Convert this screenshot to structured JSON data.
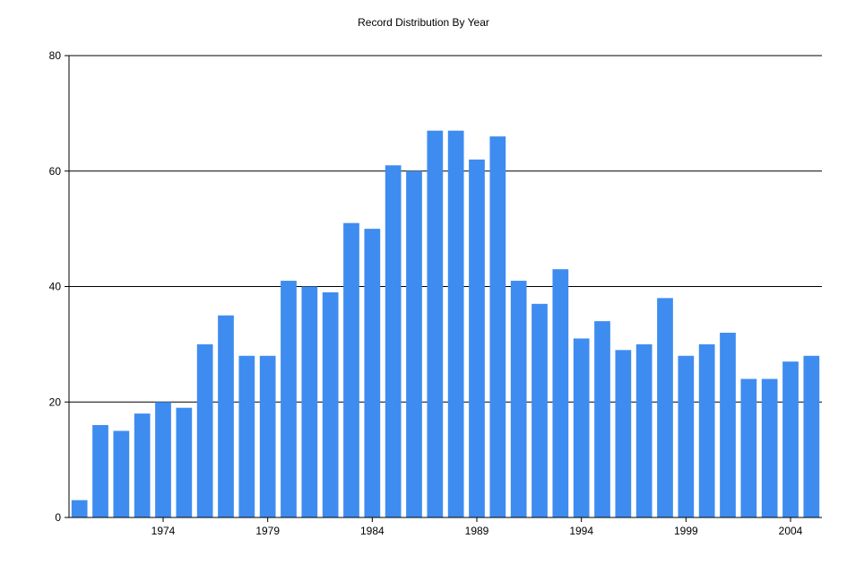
{
  "chart_data": {
    "type": "bar",
    "title": "Record Distribution By Year",
    "xlabel": "",
    "ylabel": "",
    "x_range": [
      1969.5,
      2005.5
    ],
    "ylim": [
      0,
      80
    ],
    "y_ticks": [
      0,
      20,
      40,
      60,
      80
    ],
    "x_ticks": [
      1974,
      1979,
      1984,
      1989,
      1994,
      1999,
      2004
    ],
    "grid": "horizontal",
    "legend": "none",
    "bar_color": "#3f8cf0",
    "categories": [
      1970,
      1971,
      1972,
      1973,
      1974,
      1975,
      1976,
      1977,
      1978,
      1979,
      1980,
      1981,
      1982,
      1983,
      1984,
      1985,
      1986,
      1987,
      1988,
      1989,
      1990,
      1991,
      1992,
      1993,
      1994,
      1995,
      1996,
      1997,
      1998,
      1999,
      2000,
      2001,
      2002,
      2003,
      2004,
      2005
    ],
    "values": [
      3,
      16,
      15,
      18,
      20,
      19,
      30,
      35,
      28,
      28,
      41,
      40,
      39,
      51,
      50,
      61,
      60,
      67,
      67,
      62,
      66,
      41,
      37,
      43,
      31,
      34,
      29,
      30,
      38,
      28,
      30,
      32,
      24,
      24,
      27,
      28
    ]
  }
}
